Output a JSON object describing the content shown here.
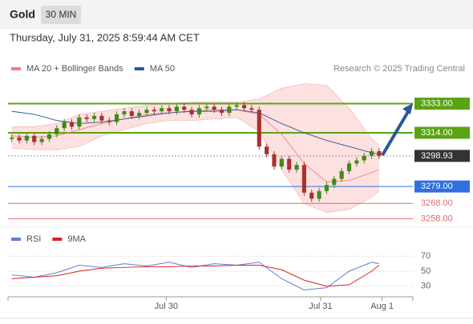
{
  "chart_data": {
    "type": "candlestick",
    "title": "Gold",
    "timeframe": "30 MIN",
    "subtitle": "Thursday, July 31, 2025 8:59:44 AM CET",
    "source": "Research © 2025 Trading Central",
    "xlim": [
      -0.5,
      53.5
    ],
    "xticks": [
      {
        "value": 20.6,
        "label": "Jul 30"
      },
      {
        "value": 41.2,
        "label": "Jul 31"
      },
      {
        "value": 49.4,
        "label": "Aug 1"
      }
    ],
    "ylim": [
      3253,
      3351
    ],
    "candles": {
      "up_color": "#3f8a1a",
      "down_color": "#a8322d",
      "open": [
        3310,
        3311,
        3309,
        3312,
        3308,
        3310,
        3313,
        3317,
        3321,
        3318,
        3324,
        3323,
        3325,
        3322,
        3321,
        3326,
        3328,
        3325,
        3327,
        3329,
        3328,
        3330,
        3328,
        3331,
        3329,
        3326,
        3330,
        3331,
        3329,
        3327,
        3331,
        3332,
        3330,
        3329,
        3305,
        3300,
        3292,
        3297,
        3290,
        3293,
        3275,
        3271,
        3276,
        3280,
        3284,
        3289,
        3294,
        3296,
        3299,
        3302
      ],
      "high": [
        3313,
        3313,
        3314,
        3314,
        3312,
        3315,
        3319,
        3323,
        3323,
        3326,
        3326,
        3327,
        3327,
        3324,
        3328,
        3330,
        3330,
        3329,
        3331,
        3331,
        3332,
        3332,
        3333,
        3333,
        3331,
        3332,
        3333,
        3333,
        3331,
        3333,
        3334,
        3334,
        3332,
        3331,
        3307,
        3302,
        3299,
        3299,
        3295,
        3295,
        3277,
        3278,
        3282,
        3286,
        3291,
        3296,
        3298,
        3301,
        3304,
        3304
      ],
      "low": [
        3308,
        3307,
        3307,
        3306,
        3306,
        3308,
        3311,
        3315,
        3316,
        3316,
        3321,
        3321,
        3320,
        3319,
        3319,
        3324,
        3323,
        3323,
        3325,
        3326,
        3326,
        3326,
        3326,
        3327,
        3324,
        3324,
        3328,
        3327,
        3325,
        3325,
        3329,
        3328,
        3327,
        3303,
        3298,
        3290,
        3290,
        3288,
        3288,
        3273,
        3269,
        3269,
        3274,
        3278,
        3282,
        3287,
        3292,
        3294,
        3297,
        3297
      ],
      "close": [
        3311,
        3309,
        3312,
        3308,
        3310,
        3313,
        3317,
        3321,
        3318,
        3324,
        3323,
        3325,
        3322,
        3321,
        3326,
        3328,
        3325,
        3327,
        3329,
        3328,
        3330,
        3328,
        3331,
        3329,
        3326,
        3330,
        3331,
        3329,
        3327,
        3331,
        3332,
        3330,
        3329,
        3305,
        3300,
        3292,
        3297,
        3290,
        3293,
        3275,
        3271,
        3276,
        3280,
        3284,
        3289,
        3294,
        3296,
        3299,
        3302,
        3299
      ]
    },
    "overlay_x": [
      0,
      3,
      6,
      9,
      12,
      15,
      18,
      21,
      24,
      27,
      30,
      33,
      36,
      39,
      42,
      45,
      48,
      49
    ],
    "overlays": [
      {
        "name": "MA 20 + Bollinger Bands",
        "color": "#f08080",
        "band_color": "#fde0e0",
        "values": [
          3312,
          3311,
          3312,
          3316,
          3320,
          3323,
          3326,
          3327,
          3328,
          3329,
          3329,
          3326,
          3313,
          3294,
          3282,
          3283,
          3288,
          3290
        ],
        "upper": [
          3318,
          3318,
          3320,
          3326,
          3328,
          3330,
          3332,
          3333,
          3334,
          3334,
          3334,
          3336,
          3343,
          3346,
          3345,
          3330,
          3310,
          3306
        ],
        "lower": [
          3304,
          3303,
          3303,
          3305,
          3312,
          3316,
          3320,
          3322,
          3322,
          3323,
          3324,
          3315,
          3290,
          3268,
          3262,
          3264,
          3272,
          3276
        ]
      },
      {
        "name": "MA 50",
        "color": "#2b5797",
        "values": [
          3328,
          3326,
          3322,
          3320,
          3321,
          3323,
          3325,
          3327,
          3328,
          3328,
          3329,
          3327,
          3320,
          3314,
          3309,
          3305,
          3301,
          3300
        ]
      }
    ],
    "levels": [
      {
        "value": 3333,
        "label": "3333.00",
        "color": "#5aa312",
        "style": "box"
      },
      {
        "value": 3314,
        "label": "3314.00",
        "color": "#5aa312",
        "style": "box"
      },
      {
        "value": 3298.93,
        "label": "3298.93",
        "color": "#333333",
        "style": "current"
      },
      {
        "value": 3279,
        "label": "3279.00",
        "color": "#2f6fe0",
        "style": "box"
      },
      {
        "value": 3268,
        "label": "3268.00",
        "color": "#e06a6a",
        "style": "text"
      },
      {
        "value": 3258,
        "label": "3258.00",
        "color": "#e06a6a",
        "style": "text"
      }
    ],
    "rsi": {
      "ylim": [
        18,
        82
      ],
      "yticks": [
        70,
        50,
        30
      ],
      "series": [
        {
          "name": "RSI",
          "color": "#5b7fd6",
          "values": [
            45,
            42,
            48,
            58,
            55,
            60,
            57,
            62,
            55,
            60,
            58,
            62,
            40,
            25,
            28,
            50,
            62,
            60
          ]
        },
        {
          "name": "9MA",
          "color": "#e02020",
          "values": [
            40,
            42,
            44,
            50,
            54,
            55,
            56,
            56,
            57,
            57,
            58,
            58,
            52,
            38,
            30,
            32,
            50,
            58
          ]
        }
      ]
    }
  }
}
